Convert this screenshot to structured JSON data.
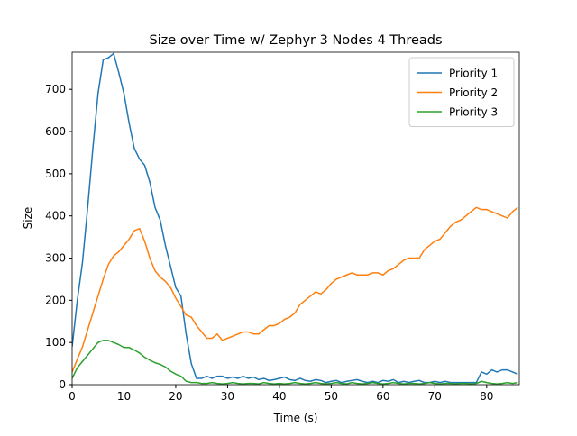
{
  "chart_data": {
    "type": "line",
    "title": "Size over Time w/ Zephyr 3 Nodes 4 Threads",
    "x_label": "Time (s)",
    "y_label": "Size",
    "x": [
      0,
      1,
      2,
      3,
      4,
      5,
      6,
      7,
      8,
      9,
      10,
      11,
      12,
      13,
      14,
      15,
      16,
      17,
      18,
      19,
      20,
      21,
      22,
      23,
      24,
      25,
      26,
      27,
      28,
      29,
      30,
      31,
      32,
      33,
      34,
      35,
      36,
      37,
      38,
      39,
      40,
      41,
      42,
      43,
      44,
      45,
      46,
      47,
      48,
      49,
      50,
      51,
      52,
      53,
      54,
      55,
      56,
      57,
      58,
      59,
      60,
      61,
      62,
      63,
      64,
      65,
      66,
      67,
      68,
      69,
      70,
      71,
      72,
      73,
      74,
      75,
      76,
      77,
      78,
      79,
      80,
      81,
      82,
      83,
      84,
      85,
      86
    ],
    "series": [
      {
        "name": "Priority 1",
        "color": "#1f77b4",
        "values": [
          90,
          200,
          290,
          420,
          560,
          690,
          770,
          775,
          785,
          740,
          690,
          620,
          560,
          535,
          520,
          480,
          420,
          390,
          330,
          280,
          230,
          210,
          120,
          50,
          15,
          15,
          20,
          15,
          20,
          20,
          15,
          18,
          15,
          20,
          15,
          18,
          12,
          15,
          10,
          12,
          15,
          18,
          12,
          10,
          15,
          10,
          8,
          12,
          10,
          5,
          8,
          10,
          5,
          8,
          10,
          12,
          8,
          5,
          8,
          5,
          10,
          8,
          12,
          5,
          8,
          5,
          8,
          10,
          5,
          5,
          8,
          5,
          8,
          5,
          5,
          5,
          5,
          5,
          5,
          30,
          25,
          35,
          30,
          35,
          35,
          30,
          25
        ]
      },
      {
        "name": "Priority 2",
        "color": "#ff7f0e",
        "values": [
          30,
          60,
          90,
          130,
          170,
          210,
          250,
          285,
          305,
          315,
          330,
          345,
          365,
          370,
          340,
          300,
          270,
          255,
          245,
          230,
          205,
          185,
          165,
          160,
          140,
          125,
          110,
          110,
          120,
          105,
          110,
          115,
          120,
          125,
          125,
          120,
          120,
          130,
          140,
          140,
          145,
          155,
          160,
          170,
          190,
          200,
          210,
          220,
          215,
          225,
          240,
          250,
          255,
          260,
          265,
          260,
          260,
          260,
          265,
          265,
          260,
          270,
          275,
          285,
          295,
          300,
          300,
          300,
          320,
          330,
          340,
          345,
          360,
          375,
          385,
          390,
          400,
          410,
          420,
          415,
          415,
          410,
          405,
          400,
          395,
          410,
          420
        ]
      },
      {
        "name": "Priority 3",
        "color": "#2ca02c",
        "values": [
          15,
          40,
          55,
          70,
          85,
          100,
          105,
          105,
          100,
          95,
          88,
          88,
          82,
          75,
          65,
          58,
          52,
          48,
          42,
          32,
          25,
          20,
          8,
          5,
          5,
          3,
          3,
          5,
          3,
          2,
          3,
          5,
          3,
          2,
          3,
          3,
          2,
          5,
          3,
          2,
          3,
          2,
          3,
          5,
          3,
          2,
          3,
          5,
          3,
          2,
          3,
          5,
          3,
          2,
          5,
          3,
          2,
          3,
          5,
          3,
          2,
          3,
          5,
          3,
          2,
          3,
          3,
          2,
          3,
          5,
          3,
          2,
          3,
          3,
          2,
          3,
          3,
          2,
          3,
          8,
          5,
          3,
          2,
          3,
          5,
          3,
          5
        ]
      }
    ],
    "xlim": [
      0,
      86.3
    ],
    "ylim": [
      0,
      788
    ],
    "xticks": [
      0,
      10,
      20,
      30,
      40,
      50,
      60,
      70,
      80
    ],
    "yticks": [
      0,
      100,
      200,
      300,
      400,
      500,
      600,
      700
    ],
    "legend": "upper right"
  }
}
